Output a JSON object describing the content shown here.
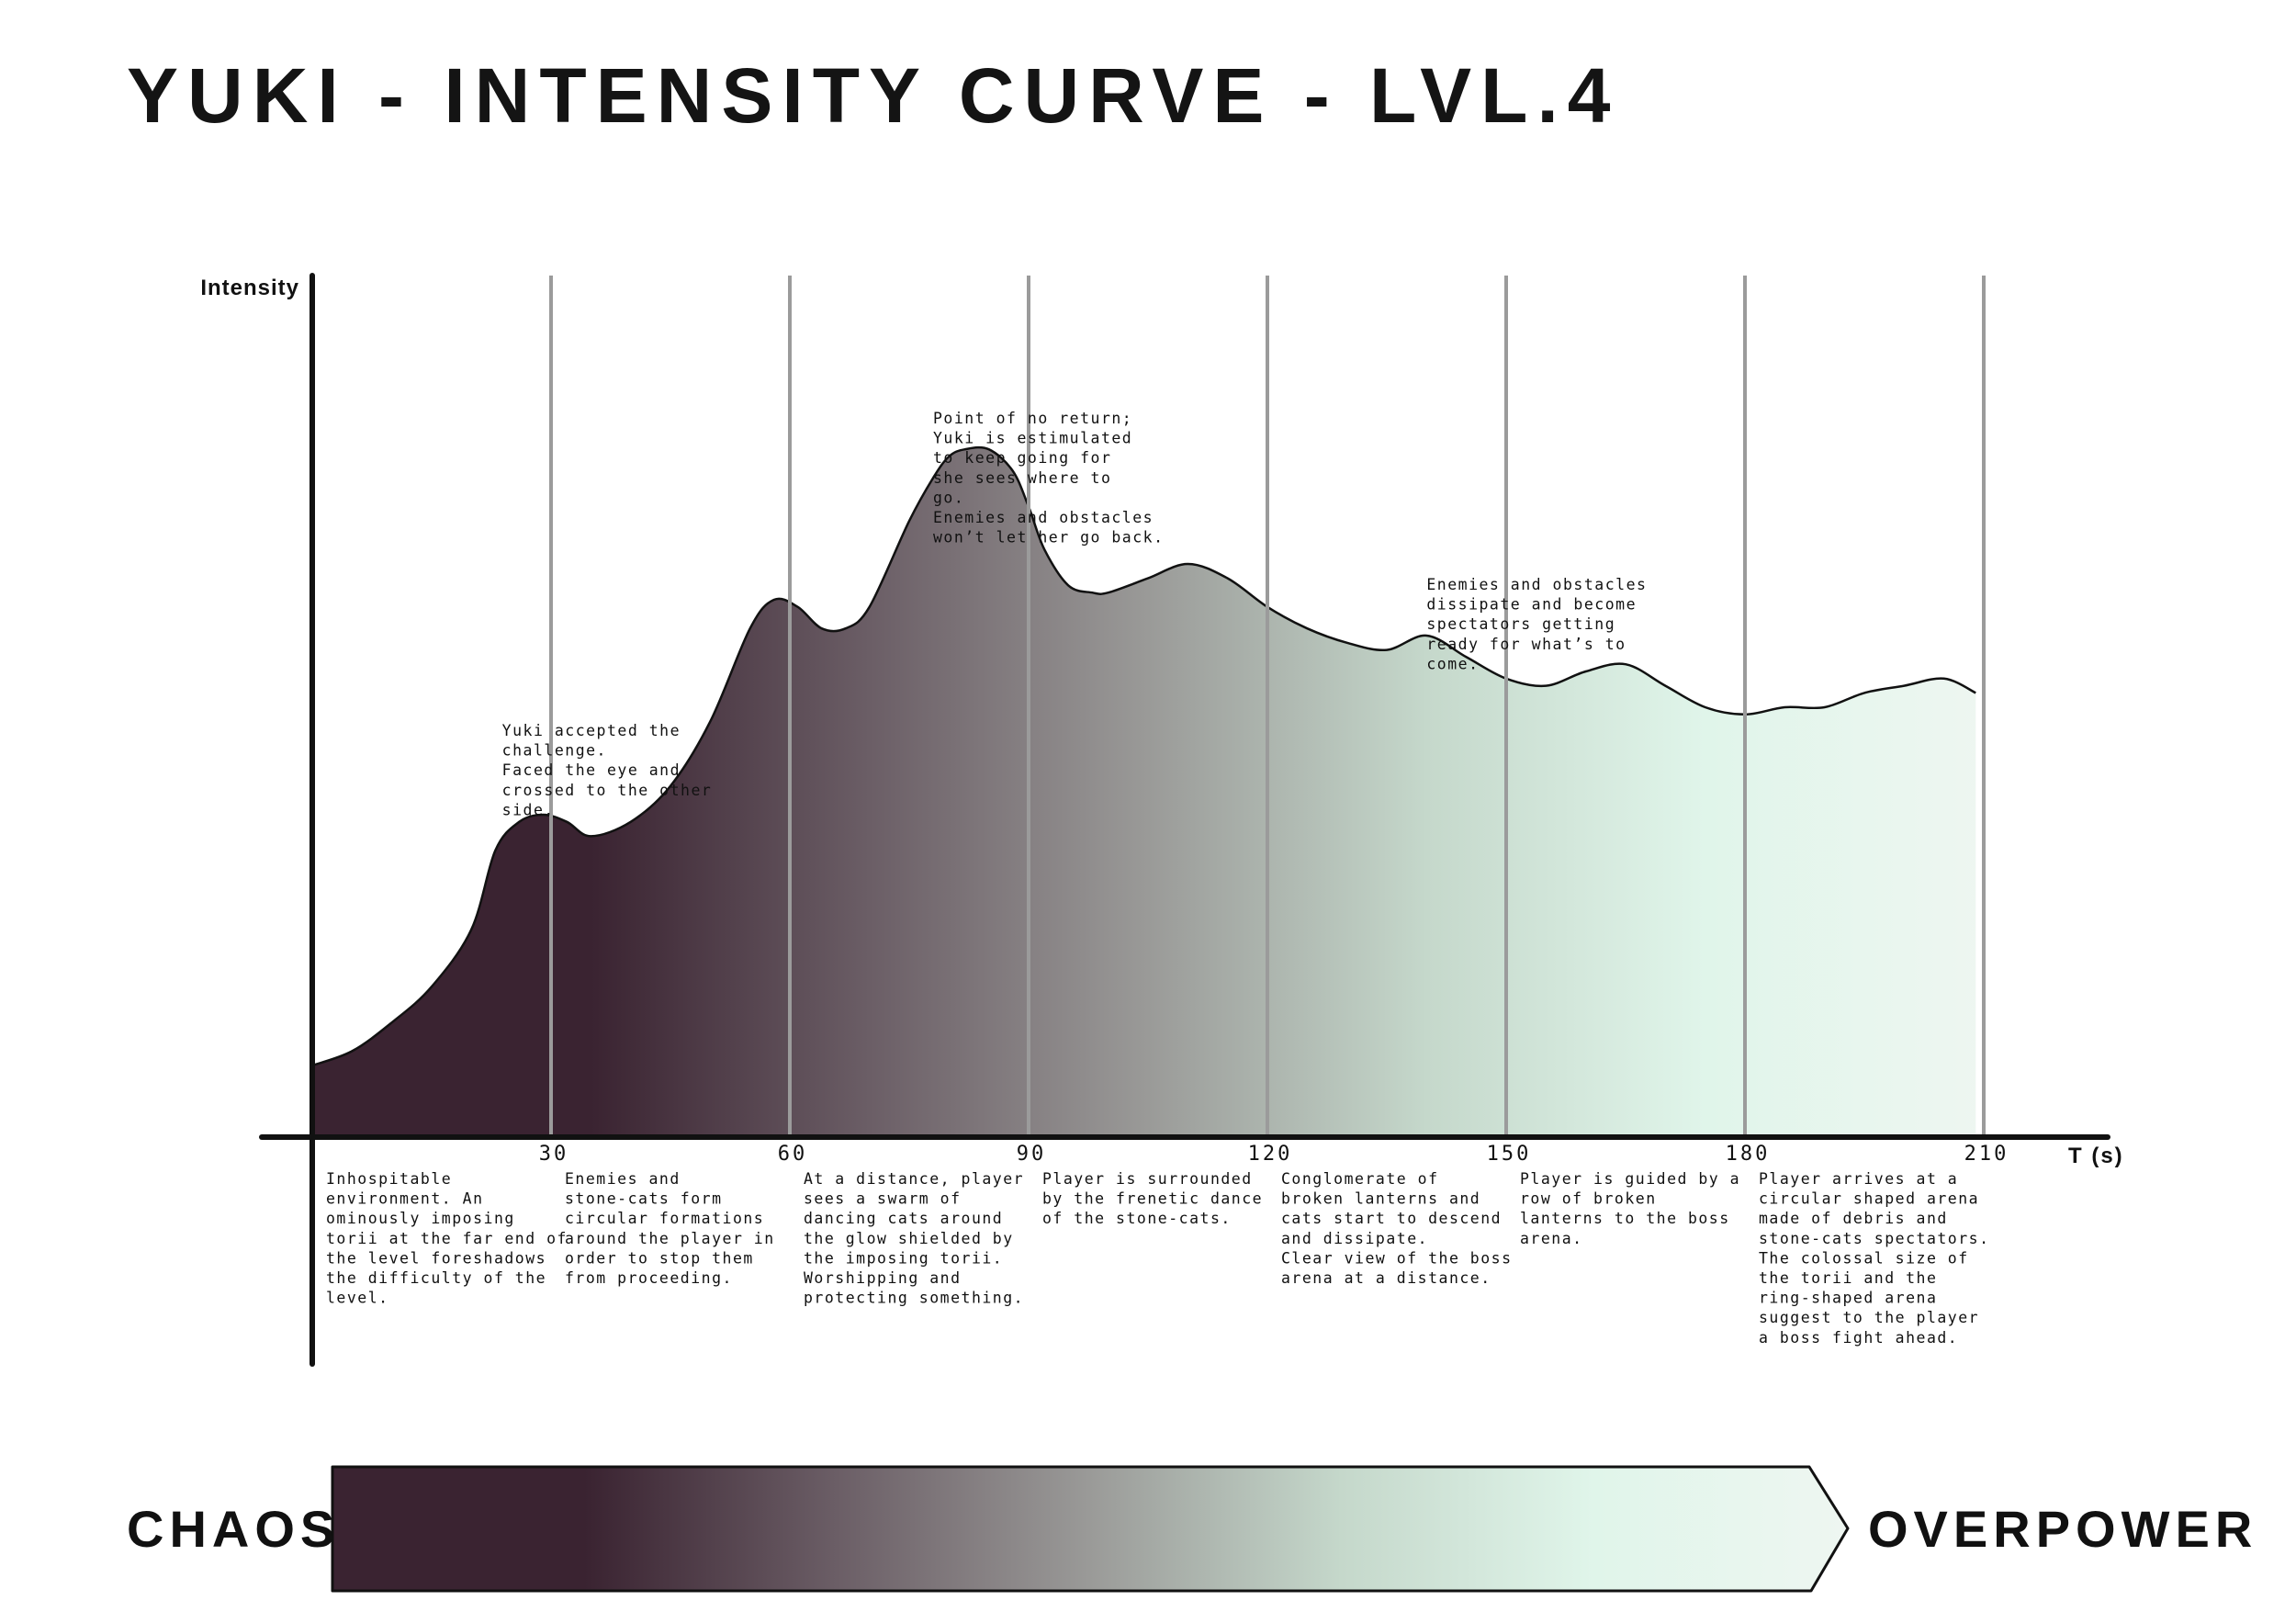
{
  "header": {
    "title": "YUKI - INTENSITY CURVE - LVL.4"
  },
  "chart_data": {
    "type": "area",
    "title": "YUKI - INTENSITY CURVE - LVL.4",
    "xlabel": "T (s)",
    "ylabel": "Intensity",
    "x_ticks": [
      30,
      60,
      90,
      120,
      150,
      180,
      210
    ],
    "xlim": [
      0,
      210
    ],
    "ylim": [
      0,
      100
    ],
    "grid": "vertical lines at every tick",
    "y_tick_labels": "none",
    "series": [
      {
        "x": [
          0,
          5,
          10,
          15,
          20,
          23,
          26,
          29,
          32,
          35,
          40,
          45,
          50,
          55,
          58,
          61,
          64,
          67,
          70,
          75,
          78,
          80,
          82,
          85,
          88,
          90,
          92,
          95,
          98,
          100,
          105,
          110,
          115,
          120,
          125,
          130,
          135,
          140,
          145,
          150,
          155,
          160,
          165,
          170,
          175,
          180,
          185,
          190,
          195,
          200,
          205,
          209
        ],
        "values": [
          10,
          12,
          16,
          21,
          29,
          40,
          44,
          45,
          44,
          42,
          44,
          49,
          58,
          71,
          75,
          74,
          71,
          71,
          74,
          86,
          92,
          95,
          96,
          96,
          93,
          88,
          82,
          77,
          76,
          76,
          78,
          80,
          78,
          74,
          71,
          69,
          68,
          70,
          67,
          64,
          63,
          65,
          66,
          63,
          60,
          59,
          60,
          60,
          62,
          63,
          64,
          62
        ]
      }
    ],
    "annotations": [
      {
        "x": 25,
        "text": "Yuki accepted the\nchallenge.\nFaced the eye and\ncrossed to the other\nside."
      },
      {
        "x": 78,
        "text": "Point of no return;\nYuki is estimulated\nto keep going for\nshe sees where to\ngo.\nEnemies and obstacles\nwon’t let her go back."
      },
      {
        "x": 140,
        "text": "Enemies and obstacles\ndissipate and become\nspectators getting\nready for what’s to\ncome."
      }
    ],
    "segment_descriptions": [
      {
        "range": [
          0,
          30
        ],
        "text": "Inhospitable\nenvironment. An\nominously imposing\ntorii at the far end of\nthe level foreshadows\nthe difficulty of the\nlevel."
      },
      {
        "range": [
          30,
          60
        ],
        "text": "Enemies and\nstone-cats form\ncircular formations\naround the player in\norder to stop them\nfrom proceeding."
      },
      {
        "range": [
          60,
          90
        ],
        "text": "At a distance, player\nsees a swarm of\ndancing cats around\nthe glow shielded by\nthe imposing torii.\nWorshipping and\nprotecting something."
      },
      {
        "range": [
          90,
          120
        ],
        "text": "Player is surrounded\nby the frenetic dance\nof the stone-cats."
      },
      {
        "range": [
          120,
          150
        ],
        "text": "Conglomerate of\nbroken lanterns and\ncats start to descend\nand dissipate.\nClear view of the boss\narena at a distance."
      },
      {
        "range": [
          150,
          180
        ],
        "text": "Player is guided by a\nrow of broken\nlanterns to the boss\narena."
      },
      {
        "range": [
          180,
          210
        ],
        "text": "Player arrives at a\ncircular shaped arena\nmade of debris and\nstone-cats spectators.\nThe colossal size of\nthe torii and the\nring-shaped arena\nsuggest to the player\na boss fight ahead."
      }
    ],
    "gradient_colors": [
      "#3a2331",
      "#3a2331",
      "#6b5e66",
      "#9a9a98",
      "#c5d8cb",
      "#e0f5ea",
      "#eef6f1"
    ]
  },
  "scale_bar": {
    "left_label": "CHAOS",
    "right_label": "OVERPOWER"
  },
  "colors": {
    "dark": "#3a2331",
    "light": "#eef6f1",
    "grid": "#9b9b9b",
    "axis": "#111111"
  }
}
